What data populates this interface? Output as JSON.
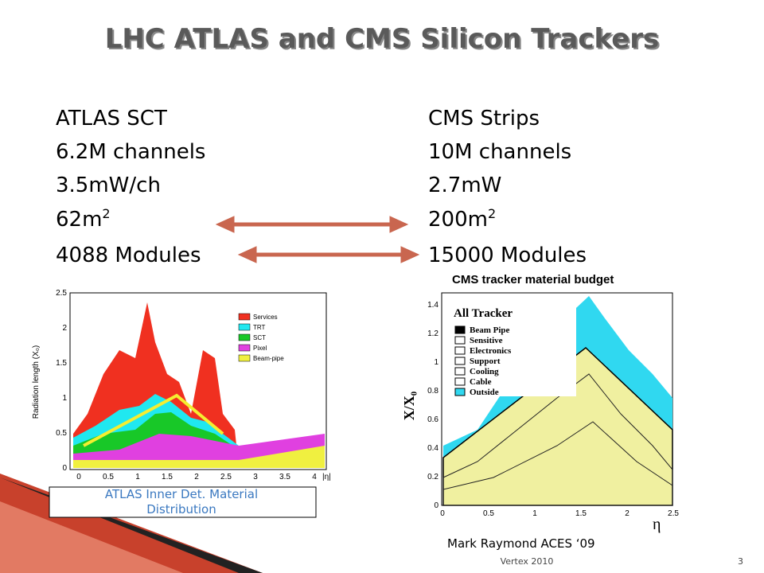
{
  "title": "LHC ATLAS  and CMS Silicon Trackers",
  "left_column": [
    {
      "text": "ATLAS  SCT"
    },
    {
      "text": "6.2M channels"
    },
    {
      "text": "3.5mW/ch"
    },
    {
      "text": "62m",
      "sup": "2"
    },
    {
      "text": "4088 Modules"
    }
  ],
  "right_column": [
    {
      "text": "CMS Strips"
    },
    {
      "text": "10M channels"
    },
    {
      "text": "2.7mW"
    },
    {
      "text": "200m",
      "sup": "2"
    },
    {
      "text": "15000 Modules"
    }
  ],
  "atlas_plot": {
    "y_label": "Radiation length (X₀)",
    "x_label": "|η|",
    "legend": [
      "Services",
      "TRT",
      "SCT",
      "Pixel",
      "Beam-pipe"
    ],
    "x_ticks": [
      "0",
      "0.5",
      "1",
      "1.5",
      "2",
      "2.5",
      "3",
      "3.5",
      "4"
    ],
    "y_ticks": [
      "0",
      "0.5",
      "1",
      "1.5",
      "2",
      "2.5"
    ],
    "caption": [
      "ATLAS Inner Det. Material",
      "Distribution"
    ]
  },
  "cms_plot": {
    "title": "CMS tracker material budget",
    "panel_label": "All Tracker",
    "y_label": "X/X₀",
    "x_label": "η",
    "legend": [
      "Beam Pipe",
      "Sensitive",
      "Electronics",
      "Support",
      "Cooling",
      "Cable",
      "Outside"
    ],
    "x_ticks": [
      "0",
      "0.5",
      "1",
      "1.5",
      "2",
      "2.5"
    ],
    "y_ticks": [
      "0",
      "0.2",
      "0.4",
      "0.6",
      "0.8",
      "1",
      "1.2",
      "1.4"
    ]
  },
  "footer": {
    "credit": "Mark Raymond  ACES  ‘09",
    "event": "Vertex 2010",
    "page": "3"
  }
}
